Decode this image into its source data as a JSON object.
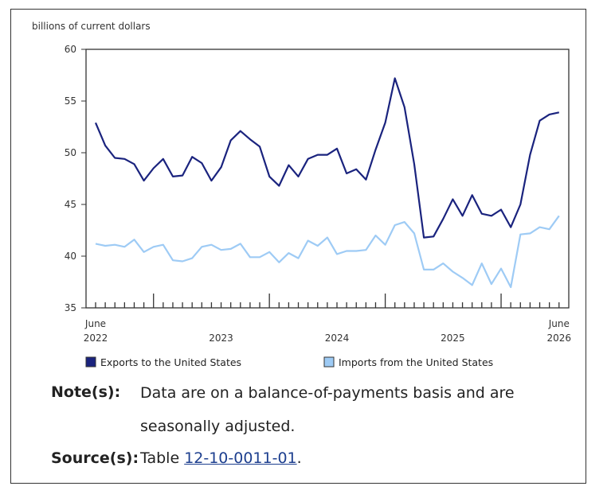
{
  "chart_data": {
    "type": "line",
    "ylabel": "billions of current dollars",
    "ylim": [
      35,
      60
    ],
    "yticks": [
      35,
      40,
      45,
      50,
      55,
      60
    ],
    "x_start": "June 2022",
    "x_end": "June 2026",
    "year_labels": [
      "2022",
      "2023",
      "2024",
      "2025",
      "2026"
    ],
    "month_label_start": "June",
    "month_label_end": "June",
    "x": [
      "2022-06",
      "2022-07",
      "2022-08",
      "2022-09",
      "2022-10",
      "2022-11",
      "2022-12",
      "2023-01",
      "2023-02",
      "2023-03",
      "2023-04",
      "2023-05",
      "2023-06",
      "2023-07",
      "2023-08",
      "2023-09",
      "2023-10",
      "2023-11",
      "2023-12",
      "2024-01",
      "2024-02",
      "2024-03",
      "2024-04",
      "2024-05",
      "2024-06",
      "2024-07",
      "2024-08",
      "2024-09",
      "2024-10",
      "2024-11",
      "2024-12",
      "2025-01",
      "2025-02",
      "2025-03",
      "2025-04",
      "2025-05",
      "2025-06",
      "2025-07",
      "2025-08",
      "2025-09",
      "2025-10",
      "2025-11",
      "2025-12",
      "2026-01",
      "2026-02",
      "2026-03",
      "2026-04",
      "2026-05",
      "2026-06"
    ],
    "series": [
      {
        "name": "Exports to the United States",
        "color": "#1a237e",
        "values": [
          52.9,
          50.7,
          49.5,
          49.4,
          48.9,
          47.3,
          48.5,
          49.4,
          47.7,
          47.8,
          49.6,
          49.0,
          47.3,
          48.6,
          51.2,
          52.1,
          51.3,
          50.6,
          47.7,
          46.8,
          48.8,
          47.7,
          49.4,
          49.8,
          49.8,
          50.4,
          48.0,
          48.4,
          47.4,
          50.3,
          52.9,
          57.2,
          54.4,
          48.9,
          41.8,
          41.9,
          43.6,
          45.5,
          43.9,
          45.9,
          44.1,
          43.9,
          44.5,
          42.8,
          45.0,
          49.8,
          53.1,
          53.7,
          53.9
        ]
      },
      {
        "name": "Imports from the United States",
        "color": "#9ecbf5",
        "values": [
          41.2,
          41.0,
          41.1,
          40.9,
          41.6,
          40.4,
          40.9,
          41.1,
          39.6,
          39.5,
          39.8,
          40.9,
          41.1,
          40.6,
          40.7,
          41.2,
          39.9,
          39.9,
          40.4,
          39.4,
          40.3,
          39.8,
          41.5,
          41.0,
          41.8,
          40.2,
          40.5,
          40.5,
          40.6,
          42.0,
          41.1,
          43.0,
          43.3,
          42.2,
          38.7,
          38.7,
          39.3,
          38.5,
          37.9,
          37.2,
          39.3,
          37.3,
          38.8,
          37.0,
          42.1,
          42.2,
          42.8,
          42.6,
          43.9
        ]
      }
    ],
    "legend_position": "bottom"
  },
  "notes": {
    "note_label": "Note(s):",
    "note_text": "Data are on a balance-of-payments basis and are seasonally adjusted.",
    "source_label": "Source(s):",
    "source_prefix": "Table ",
    "source_link": "12-10-0011-01",
    "source_suffix": "."
  }
}
